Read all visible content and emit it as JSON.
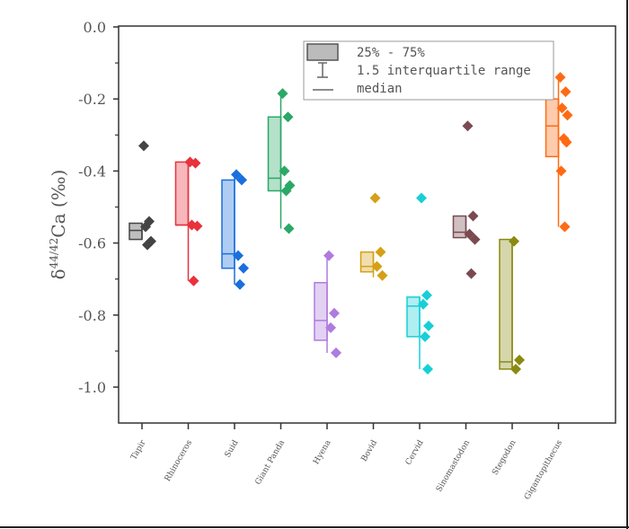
{
  "chart_data": {
    "type": "box",
    "title": "",
    "xlabel": "",
    "ylabel_main": "δ",
    "ylabel_sup": "44/42",
    "ylabel_rest": "Ca (‰)",
    "ylim": [
      -1.1,
      0.0
    ],
    "yticks": [
      "0.0",
      "-0.2",
      "-0.4",
      "-0.6",
      "-0.8",
      "-1.0"
    ],
    "ytick_values": [
      0.0,
      -0.2,
      -0.4,
      -0.6,
      -0.8,
      -1.0
    ],
    "legend": {
      "placement": "top-center",
      "entries": [
        "25% - 75%",
        "1.5 interquartile range",
        "median"
      ]
    },
    "categories": [
      "Tapir",
      "Rhinoceros",
      "Suid",
      "Giant Panda",
      "Hyena",
      "Bovid",
      "Cervid",
      "Sinomastodon",
      "Stegodon",
      "Gigantopithecus"
    ],
    "series": [
      {
        "name": "Tapir",
        "color": "#444444",
        "q1": -0.59,
        "q3": -0.545,
        "median": -0.565,
        "whisker": [
          -0.59,
          -0.545
        ],
        "points": [
          -0.33,
          -0.54,
          -0.555,
          -0.595,
          -0.605
        ]
      },
      {
        "name": "Rhinoceros",
        "color": "#e8323c",
        "q1": -0.55,
        "q3": -0.375,
        "median": -0.55,
        "whisker": [
          -0.705,
          -0.375
        ],
        "points": [
          -0.375,
          -0.378,
          -0.55,
          -0.553,
          -0.705
        ]
      },
      {
        "name": "Suid",
        "color": "#1a6fde",
        "q1": -0.67,
        "q3": -0.425,
        "median": -0.63,
        "whisker": [
          -0.715,
          -0.41
        ],
        "points": [
          -0.41,
          -0.425,
          -0.635,
          -0.67,
          -0.715
        ]
      },
      {
        "name": "Giant Panda",
        "color": "#2aa866",
        "q1": -0.455,
        "q3": -0.25,
        "median": -0.42,
        "whisker": [
          -0.56,
          -0.185
        ],
        "points": [
          -0.185,
          -0.25,
          -0.4,
          -0.44,
          -0.455,
          -0.56
        ]
      },
      {
        "name": "Hyena",
        "color": "#b07adf",
        "q1": -0.87,
        "q3": -0.71,
        "median": -0.815,
        "whisker": [
          -0.905,
          -0.635
        ],
        "points": [
          -0.635,
          -0.795,
          -0.835,
          -0.905
        ]
      },
      {
        "name": "Bovid",
        "color": "#d4a017",
        "q1": -0.68,
        "q3": -0.625,
        "median": -0.665,
        "whisker": [
          -0.695,
          -0.625
        ],
        "points": [
          -0.475,
          -0.625,
          -0.665,
          -0.69
        ]
      },
      {
        "name": "Cervid",
        "color": "#19cfd6",
        "q1": -0.86,
        "q3": -0.75,
        "median": -0.775,
        "whisker": [
          -0.95,
          -0.75
        ],
        "points": [
          -0.475,
          -0.745,
          -0.77,
          -0.83,
          -0.86,
          -0.95
        ]
      },
      {
        "name": "Sinomastodon",
        "color": "#7a4a50",
        "q1": -0.585,
        "q3": -0.525,
        "median": -0.57,
        "whisker": [
          -0.585,
          -0.525
        ],
        "points": [
          -0.275,
          -0.525,
          -0.575,
          -0.59,
          -0.685
        ]
      },
      {
        "name": "Stegodon",
        "color": "#8a8a10",
        "q1": -0.95,
        "q3": -0.59,
        "median": -0.93,
        "whisker": [
          -0.95,
          -0.59
        ],
        "points": [
          -0.595,
          -0.925,
          -0.95
        ]
      },
      {
        "name": "Gigantopithecus",
        "color": "#ff6a13",
        "q1": -0.36,
        "q3": -0.2,
        "median": -0.275,
        "whisker": [
          -0.555,
          -0.14
        ],
        "points": [
          -0.14,
          -0.18,
          -0.225,
          -0.245,
          -0.31,
          -0.32,
          -0.4,
          -0.555
        ]
      }
    ]
  }
}
